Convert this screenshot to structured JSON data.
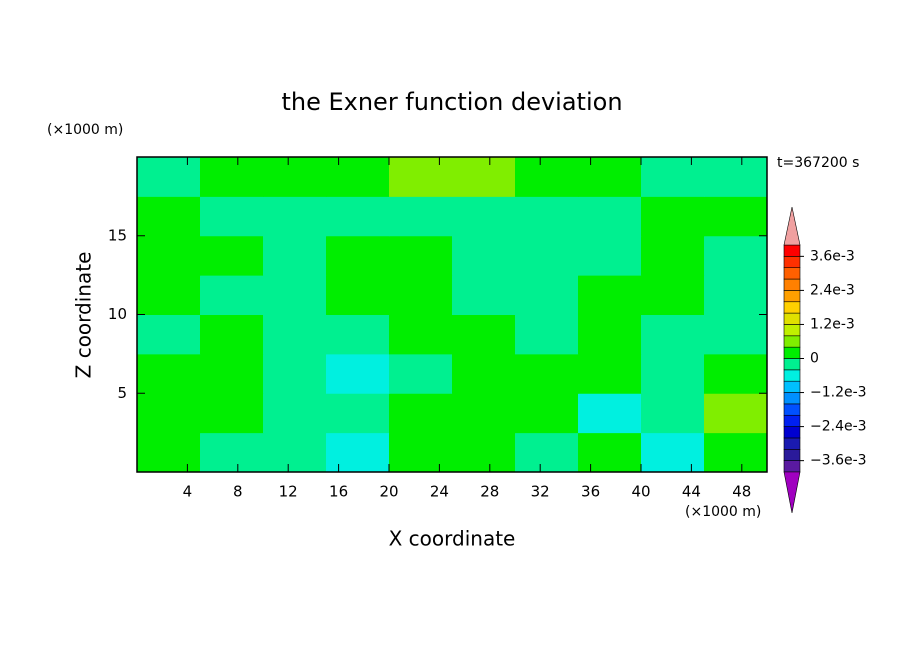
{
  "chart_data": {
    "type": "contour",
    "title": "the Exner function deviation",
    "x_label": "X coordinate",
    "y_label": "Z coordinate",
    "x_unit": "(×1000 m)",
    "y_unit": "(×1000 m)",
    "time_label": "t=367200 s",
    "xlim": [
      0,
      50
    ],
    "ylim": [
      0,
      20
    ],
    "xticks": [
      4,
      8,
      12,
      16,
      20,
      24,
      28,
      32,
      36,
      40,
      44,
      48
    ],
    "yticks": [
      5,
      10,
      15
    ],
    "x": [
      2.5,
      7.5,
      12.5,
      17.5,
      22.5,
      27.5,
      32.5,
      37.5,
      42.5,
      47.5
    ],
    "y": [
      1.25,
      3.75,
      6.25,
      8.75,
      11.25,
      13.75,
      16.25,
      18.75
    ],
    "z": [
      [
        0.0002,
        -0.0002,
        -0.0002,
        -0.0006,
        0.0002,
        0.0002,
        -0.0002,
        0.0002,
        -0.0006,
        0.0002
      ],
      [
        0.0002,
        0.0002,
        -0.0002,
        -0.0002,
        0.0002,
        0.0002,
        0.0002,
        -0.0006,
        -0.0002,
        0.0006
      ],
      [
        0.0002,
        0.0002,
        -0.0002,
        -0.0006,
        -0.0002,
        0.0002,
        0.0002,
        0.0002,
        -0.0002,
        0.0002
      ],
      [
        -0.0002,
        0.0002,
        -0.0002,
        -0.0002,
        0.0002,
        0.0002,
        -0.0002,
        0.0002,
        -0.0002,
        -0.0002
      ],
      [
        0.0002,
        -0.0002,
        -0.0002,
        0.0002,
        0.0002,
        -0.0002,
        -0.0002,
        0.0002,
        0.0002,
        -0.0002
      ],
      [
        0.0002,
        0.0002,
        -0.0002,
        0.0002,
        0.0002,
        -0.0002,
        -0.0002,
        -0.0002,
        0.0002,
        -0.0002
      ],
      [
        0.0002,
        -0.0002,
        -0.0002,
        -0.0002,
        -0.0002,
        -0.0002,
        -0.0002,
        -0.0002,
        0.0002,
        0.0002
      ],
      [
        -0.0002,
        0.0002,
        0.0002,
        0.0002,
        0.0006,
        0.0006,
        0.0002,
        0.0002,
        -0.0002,
        -0.0002
      ]
    ],
    "levels": [
      -0.004,
      -0.0036,
      -0.0032,
      -0.0028,
      -0.0024,
      -0.002,
      -0.0016,
      -0.0012,
      -0.0008,
      -0.0004,
      0,
      0.0004,
      0.0008,
      0.0012,
      0.0016,
      0.002,
      0.0024,
      0.0028,
      0.0032,
      0.0036,
      0.004
    ],
    "colors": [
      "#5a1aa0",
      "#2a1a9a",
      "#1a1ab0",
      "#0000d0",
      "#0020f0",
      "#0050ff",
      "#0090ff",
      "#00c0ff",
      "#00f0e0",
      "#00f090",
      "#00ee00",
      "#80ee00",
      "#c0f000",
      "#e0e000",
      "#ffd000",
      "#ffa000",
      "#ff8000",
      "#ff6000",
      "#ff3000",
      "#ff0000"
    ],
    "over_color": "#f0a0a0",
    "under_color": "#a000c0",
    "colorbar_ticks": [
      {
        "value": 0.0036,
        "label": "3.6e-3"
      },
      {
        "value": 0.0024,
        "label": "2.4e-3"
      },
      {
        "value": 0.0012,
        "label": "1.2e-3"
      },
      0,
      {
        "value": -0.0012,
        "label": "−1.2e-3"
      },
      {
        "value": -0.0024,
        "label": "−2.4e-3"
      },
      {
        "value": -0.0036,
        "label": "−3.6e-3"
      }
    ]
  }
}
